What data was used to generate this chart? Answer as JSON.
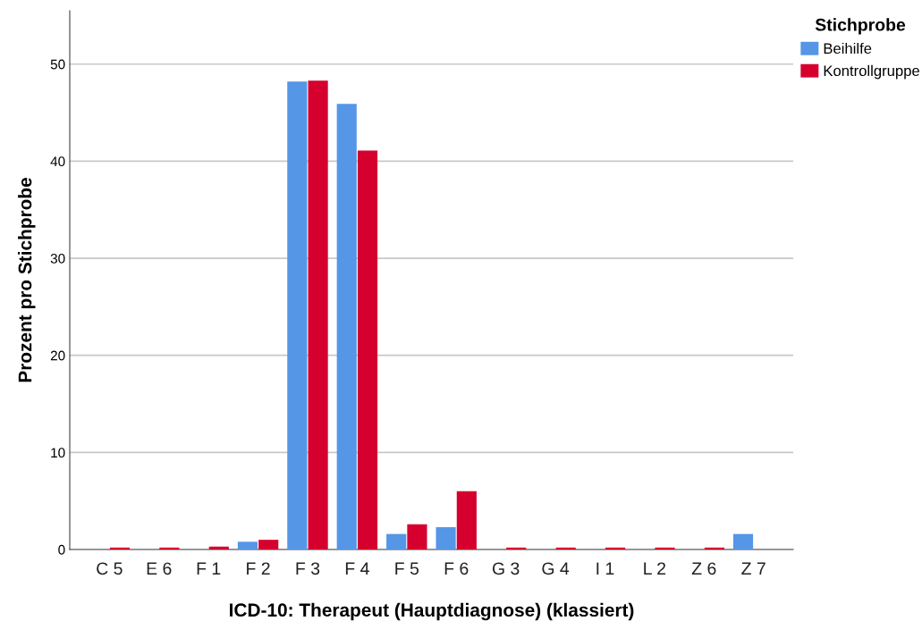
{
  "chart_data": {
    "type": "bar",
    "xlabel": "ICD-10: Therapeut (Hauptdiagnose) (klassiert)",
    "ylabel": "Prozent pro Stichprobe",
    "legend_title": "Stichprobe",
    "categories": [
      "C 5",
      "E 6",
      "F 1",
      "F 2",
      "F 3",
      "F 4",
      "F 5",
      "F 6",
      "G 3",
      "G 4",
      "I 1",
      "L 2",
      "Z 6",
      "Z 7"
    ],
    "series": [
      {
        "name": "Beihilfe",
        "color": "#5596e6",
        "values": [
          0,
          0,
          0,
          0.8,
          48.2,
          45.9,
          1.6,
          2.3,
          0,
          0,
          0,
          0,
          0,
          1.6
        ]
      },
      {
        "name": "Kontrollgruppe",
        "color": "#d6002f",
        "values": [
          0.2,
          0.2,
          0.3,
          1.0,
          48.3,
          41.1,
          2.6,
          6.0,
          0.2,
          0.2,
          0.2,
          0.2,
          0.2,
          0
        ]
      }
    ],
    "ylim": [
      0,
      55.5
    ],
    "yticks": [
      0,
      10,
      20,
      30,
      40,
      50
    ],
    "grid": "y",
    "legend": "top right"
  }
}
